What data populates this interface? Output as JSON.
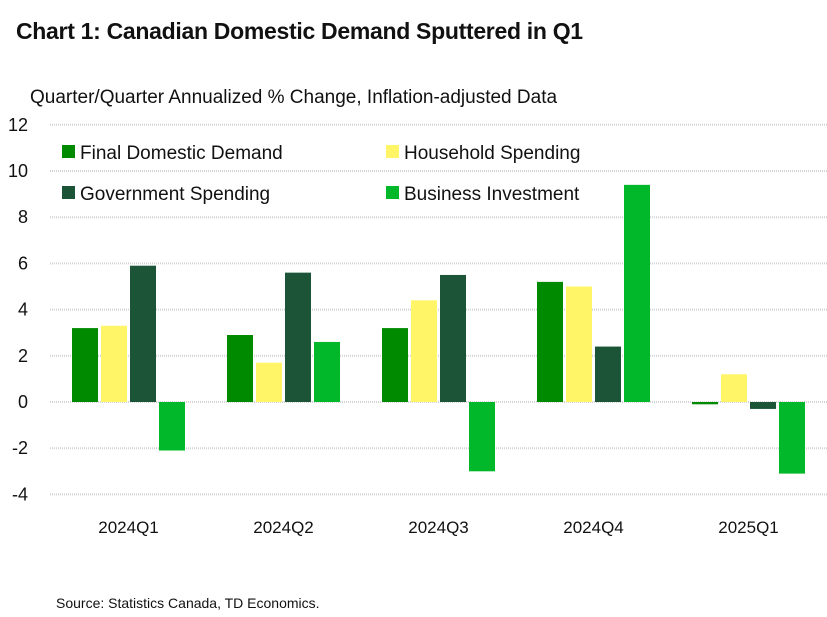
{
  "chart_data": {
    "type": "bar",
    "title": "Chart 1: Canadian Domestic Demand Sputtered in Q1",
    "subtitle": "Quarter/Quarter Annualized % Change, Inflation-adjusted Data",
    "xlabel": "",
    "ylabel": "",
    "ylim": [
      -4,
      12
    ],
    "yticks": [
      12,
      10,
      8,
      6,
      4,
      2,
      0,
      -2,
      -4
    ],
    "grid": true,
    "legend_position": "top-left",
    "categories": [
      "2024Q1",
      "2024Q2",
      "2024Q3",
      "2024Q4",
      "2025Q1"
    ],
    "series": [
      {
        "name": "Final Domestic Demand",
        "color": "#008a00",
        "values": [
          3.2,
          2.9,
          3.2,
          5.2,
          -0.1
        ]
      },
      {
        "name": "Household Spending",
        "color": "#fff566",
        "values": [
          3.3,
          1.7,
          4.4,
          5.0,
          1.2
        ]
      },
      {
        "name": "Government Spending",
        "color": "#1c5438",
        "values": [
          5.9,
          5.6,
          5.5,
          2.4,
          -0.3
        ]
      },
      {
        "name": "Business Investment",
        "color": "#00b82a",
        "values": [
          -2.1,
          2.6,
          -3.0,
          9.4,
          -3.1
        ]
      }
    ],
    "source": "Source: Statistics Canada, TD Economics."
  }
}
